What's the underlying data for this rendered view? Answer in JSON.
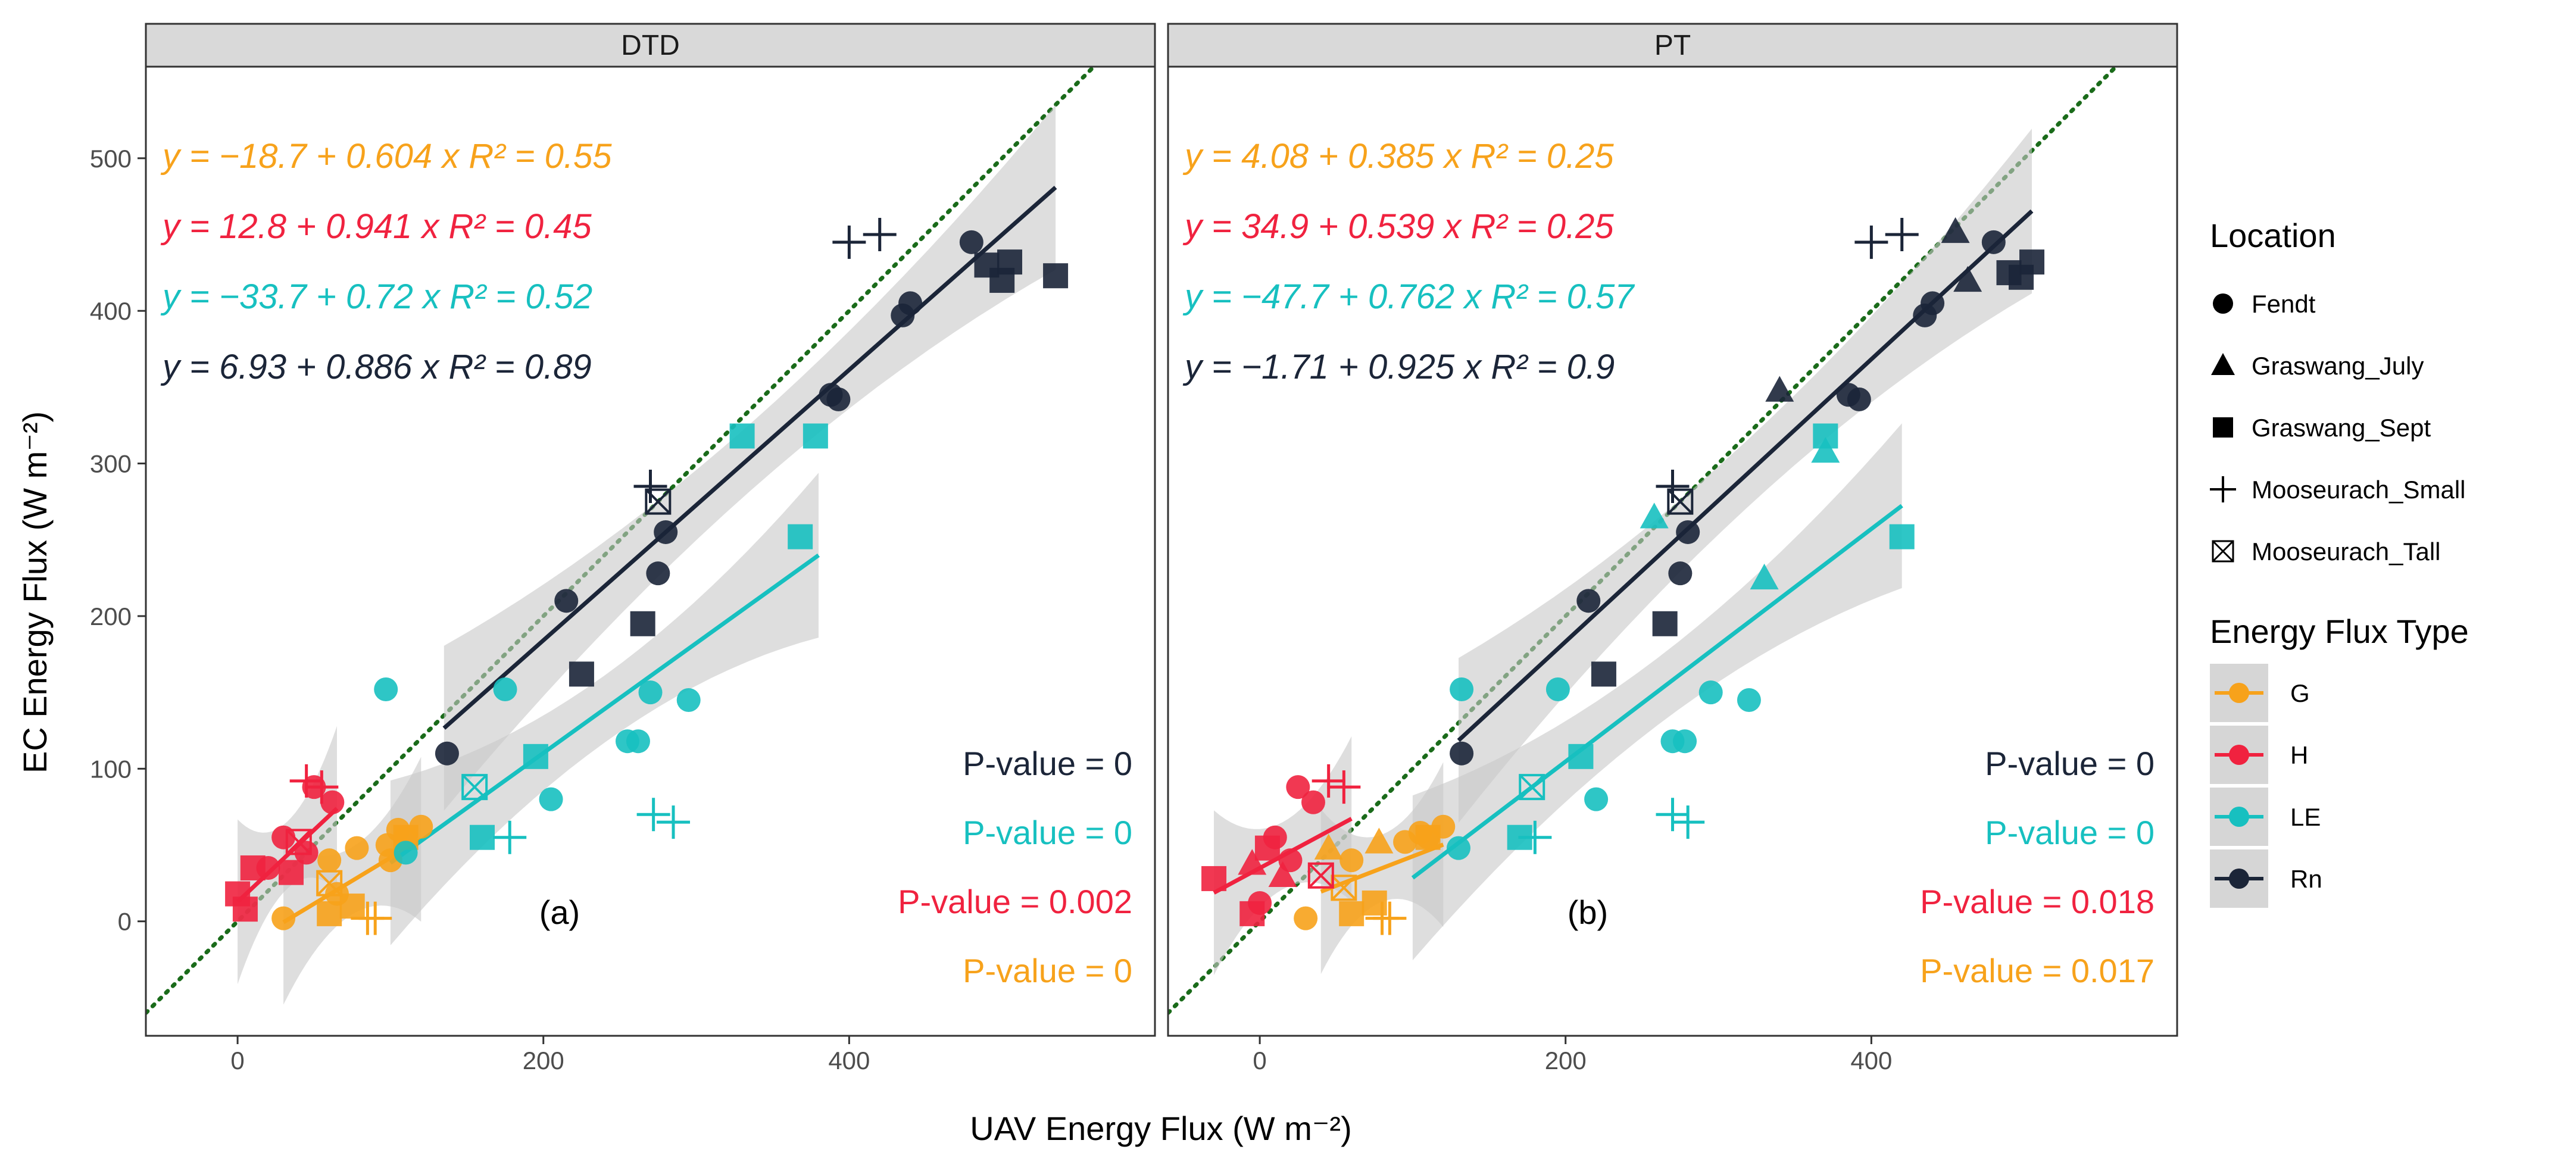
{
  "chart_data": {
    "type": "scatter",
    "xlabel": "UAV Energy Flux (W m⁻²)",
    "ylabel": "EC Energy Flux (W m⁻²)",
    "x_ticks": [
      "0",
      "200",
      "400"
    ],
    "y_ticks": [
      "0",
      "100",
      "200",
      "300",
      "400",
      "500"
    ],
    "xlim": [
      -60,
      600
    ],
    "ylim": [
      -75,
      560
    ],
    "colors": {
      "G": "#f7a21b",
      "H": "#f0223f",
      "LE": "#17c0c0",
      "Rn": "#1b2538",
      "one_to_one": "#1a6b1a",
      "band": "#c8c8c8"
    },
    "legend": {
      "location_title": "Location",
      "locations": [
        {
          "label": "Fendt",
          "shape": "circle"
        },
        {
          "label": "Graswang_July",
          "shape": "triangle"
        },
        {
          "label": "Graswang_Sept",
          "shape": "square"
        },
        {
          "label": "Mooseurach_Small",
          "shape": "plus"
        },
        {
          "label": "Mooseurach_Tall",
          "shape": "boxx"
        }
      ],
      "flux_title": "Energy Flux Type",
      "flux_types": [
        "G",
        "H",
        "LE",
        "Rn"
      ]
    },
    "panels": [
      {
        "strip": "DTD",
        "label": "(a)",
        "fits": [
          {
            "type": "G",
            "a": -18.7,
            "b": 0.604,
            "x0": 30,
            "x1": 120,
            "eq": "y = −18.7 + 0.604 x  R² = 0.55",
            "pval": "P-value = 0"
          },
          {
            "type": "H",
            "a": 12.8,
            "b": 0.941,
            "x0": 0,
            "x1": 65,
            "eq": "y = 12.8 + 0.941 x  R² = 0.45",
            "pval": "P-value = 0.002"
          },
          {
            "type": "LE",
            "a": -33.7,
            "b": 0.72,
            "x0": 100,
            "x1": 380,
            "eq": "y = −33.7 + 0.72 x  R² = 0.52",
            "pval": "P-value = 0"
          },
          {
            "type": "Rn",
            "a": 6.93,
            "b": 0.886,
            "x0": 135,
            "x1": 535,
            "eq": "y = 6.93 + 0.886 x  R² = 0.89",
            "pval": "P-value = 0"
          }
        ],
        "points": [
          [
            105,
            60,
            "G",
            "circle"
          ],
          [
            110,
            55,
            "G",
            "circle"
          ],
          [
            98,
            50,
            "G",
            "circle"
          ],
          [
            120,
            62,
            "G",
            "circle"
          ],
          [
            30,
            2,
            "G",
            "circle"
          ],
          [
            78,
            48,
            "G",
            "circle"
          ],
          [
            60,
            40,
            "G",
            "circle"
          ],
          [
            65,
            18,
            "G",
            "circle"
          ],
          [
            100,
            40,
            "G",
            "circle"
          ],
          [
            60,
            5,
            "G",
            "square"
          ],
          [
            75,
            10,
            "G",
            "square"
          ],
          [
            110,
            55,
            "G",
            "square"
          ],
          [
            85,
            2,
            "G",
            "plus"
          ],
          [
            90,
            2,
            "G",
            "plus"
          ],
          [
            60,
            25,
            "G",
            "boxx"
          ],
          [
            30,
            55,
            "H",
            "circle"
          ],
          [
            45,
            45,
            "H",
            "circle"
          ],
          [
            62,
            78,
            "H",
            "circle"
          ],
          [
            50,
            88,
            "H",
            "circle"
          ],
          [
            20,
            35,
            "H",
            "circle"
          ],
          [
            0,
            18,
            "H",
            "square"
          ],
          [
            5,
            8,
            "H",
            "square"
          ],
          [
            35,
            32,
            "H",
            "square"
          ],
          [
            10,
            35,
            "H",
            "square"
          ],
          [
            45,
            92,
            "H",
            "plus"
          ],
          [
            55,
            88,
            "H",
            "plus"
          ],
          [
            40,
            52,
            "H",
            "boxx"
          ],
          [
            97,
            152,
            "LE",
            "circle"
          ],
          [
            175,
            152,
            "LE",
            "circle"
          ],
          [
            270,
            150,
            "LE",
            "circle"
          ],
          [
            295,
            145,
            "LE",
            "circle"
          ],
          [
            255,
            118,
            "LE",
            "circle"
          ],
          [
            262,
            118,
            "LE",
            "circle"
          ],
          [
            205,
            80,
            "LE",
            "circle"
          ],
          [
            110,
            45,
            "LE",
            "circle"
          ],
          [
            330,
            318,
            "LE",
            "square"
          ],
          [
            378,
            318,
            "LE",
            "square"
          ],
          [
            368,
            252,
            "LE",
            "square"
          ],
          [
            195,
            108,
            "LE",
            "square"
          ],
          [
            160,
            55,
            "LE",
            "square"
          ],
          [
            178,
            55,
            "LE",
            "plus"
          ],
          [
            272,
            70,
            "LE",
            "plus"
          ],
          [
            285,
            65,
            "LE",
            "plus"
          ],
          [
            155,
            88,
            "LE",
            "boxx"
          ],
          [
            480,
            445,
            "Rn",
            "circle"
          ],
          [
            440,
            405,
            "Rn",
            "circle"
          ],
          [
            435,
            397,
            "Rn",
            "circle"
          ],
          [
            393,
            342,
            "Rn",
            "circle"
          ],
          [
            388,
            345,
            "Rn",
            "circle"
          ],
          [
            280,
            255,
            "Rn",
            "circle"
          ],
          [
            275,
            228,
            "Rn",
            "circle"
          ],
          [
            215,
            210,
            "Rn",
            "circle"
          ],
          [
            137,
            110,
            "Rn",
            "circle"
          ],
          [
            535,
            423,
            "Rn",
            "square"
          ],
          [
            490,
            430,
            "Rn",
            "square"
          ],
          [
            500,
            420,
            "Rn",
            "square"
          ],
          [
            505,
            432,
            "Rn",
            "square"
          ],
          [
            265,
            195,
            "Rn",
            "square"
          ],
          [
            225,
            162,
            "Rn",
            "square"
          ],
          [
            400,
            445,
            "Rn",
            "plus"
          ],
          [
            420,
            450,
            "Rn",
            "plus"
          ],
          [
            270,
            285,
            "Rn",
            "plus"
          ],
          [
            275,
            275,
            "Rn",
            "boxx"
          ]
        ]
      },
      {
        "strip": "PT",
        "label": "(b)",
        "fits": [
          {
            "type": "G",
            "a": 4.08,
            "b": 0.385,
            "x0": 40,
            "x1": 120,
            "eq": "y = 4.08 + 0.385 x  R² = 0.25",
            "pval": "P-value = 0.017"
          },
          {
            "type": "H",
            "a": 34.9,
            "b": 0.539,
            "x0": -30,
            "x1": 60,
            "eq": "y = 34.9 + 0.539 x  R² = 0.25",
            "pval": "P-value = 0.018"
          },
          {
            "type": "LE",
            "a": -47.7,
            "b": 0.762,
            "x0": 100,
            "x1": 420,
            "eq": "y = −47.7 + 0.762 x  R² = 0.57",
            "pval": "P-value = 0"
          },
          {
            "type": "Rn",
            "a": -1.71,
            "b": 0.925,
            "x0": 130,
            "x1": 505,
            "eq": "y = −1.71 + 0.925 x  R² = 0.9",
            "pval": "P-value = 0"
          }
        ],
        "points": [
          [
            105,
            58,
            "G",
            "circle"
          ],
          [
            110,
            55,
            "G",
            "circle"
          ],
          [
            95,
            52,
            "G",
            "circle"
          ],
          [
            120,
            62,
            "G",
            "circle"
          ],
          [
            30,
            2,
            "G",
            "circle"
          ],
          [
            60,
            40,
            "G",
            "circle"
          ],
          [
            45,
            48,
            "G",
            "triangle"
          ],
          [
            78,
            52,
            "G",
            "triangle"
          ],
          [
            60,
            5,
            "G",
            "square"
          ],
          [
            75,
            12,
            "G",
            "square"
          ],
          [
            110,
            55,
            "G",
            "square"
          ],
          [
            80,
            2,
            "G",
            "plus"
          ],
          [
            85,
            2,
            "G",
            "plus"
          ],
          [
            55,
            22,
            "G",
            "boxx"
          ],
          [
            0,
            12,
            "H",
            "circle"
          ],
          [
            10,
            55,
            "H",
            "circle"
          ],
          [
            25,
            88,
            "H",
            "circle"
          ],
          [
            35,
            78,
            "H",
            "circle"
          ],
          [
            20,
            40,
            "H",
            "circle"
          ],
          [
            -5,
            38,
            "H",
            "triangle"
          ],
          [
            15,
            30,
            "H",
            "triangle"
          ],
          [
            -30,
            28,
            "H",
            "square"
          ],
          [
            -5,
            5,
            "H",
            "square"
          ],
          [
            5,
            48,
            "H",
            "square"
          ],
          [
            45,
            92,
            "H",
            "plus"
          ],
          [
            55,
            88,
            "H",
            "plus"
          ],
          [
            40,
            30,
            "H",
            "boxx"
          ],
          [
            132,
            152,
            "LE",
            "circle"
          ],
          [
            195,
            152,
            "LE",
            "circle"
          ],
          [
            295,
            150,
            "LE",
            "circle"
          ],
          [
            320,
            145,
            "LE",
            "circle"
          ],
          [
            270,
            118,
            "LE",
            "circle"
          ],
          [
            278,
            118,
            "LE",
            "circle"
          ],
          [
            220,
            80,
            "LE",
            "circle"
          ],
          [
            130,
            48,
            "LE",
            "circle"
          ],
          [
            258,
            265,
            "LE",
            "triangle"
          ],
          [
            370,
            308,
            "LE",
            "triangle"
          ],
          [
            330,
            225,
            "LE",
            "triangle"
          ],
          [
            370,
            318,
            "LE",
            "square"
          ],
          [
            420,
            252,
            "LE",
            "square"
          ],
          [
            210,
            108,
            "LE",
            "square"
          ],
          [
            170,
            55,
            "LE",
            "square"
          ],
          [
            180,
            55,
            "LE",
            "plus"
          ],
          [
            270,
            70,
            "LE",
            "plus"
          ],
          [
            280,
            65,
            "LE",
            "plus"
          ],
          [
            178,
            88,
            "LE",
            "boxx"
          ],
          [
            480,
            445,
            "Rn",
            "circle"
          ],
          [
            440,
            405,
            "Rn",
            "circle"
          ],
          [
            435,
            397,
            "Rn",
            "circle"
          ],
          [
            392,
            342,
            "Rn",
            "circle"
          ],
          [
            385,
            345,
            "Rn",
            "circle"
          ],
          [
            280,
            255,
            "Rn",
            "circle"
          ],
          [
            275,
            228,
            "Rn",
            "circle"
          ],
          [
            215,
            210,
            "Rn",
            "circle"
          ],
          [
            132,
            110,
            "Rn",
            "circle"
          ],
          [
            455,
            452,
            "Rn",
            "triangle"
          ],
          [
            340,
            348,
            "Rn",
            "triangle"
          ],
          [
            463,
            420,
            "Rn",
            "triangle"
          ],
          [
            505,
            432,
            "Rn",
            "square"
          ],
          [
            490,
            425,
            "Rn",
            "square"
          ],
          [
            498,
            422,
            "Rn",
            "square"
          ],
          [
            265,
            195,
            "Rn",
            "square"
          ],
          [
            225,
            162,
            "Rn",
            "square"
          ],
          [
            400,
            445,
            "Rn",
            "plus"
          ],
          [
            420,
            450,
            "Rn",
            "plus"
          ],
          [
            270,
            285,
            "Rn",
            "plus"
          ],
          [
            275,
            275,
            "Rn",
            "boxx"
          ]
        ]
      }
    ]
  }
}
